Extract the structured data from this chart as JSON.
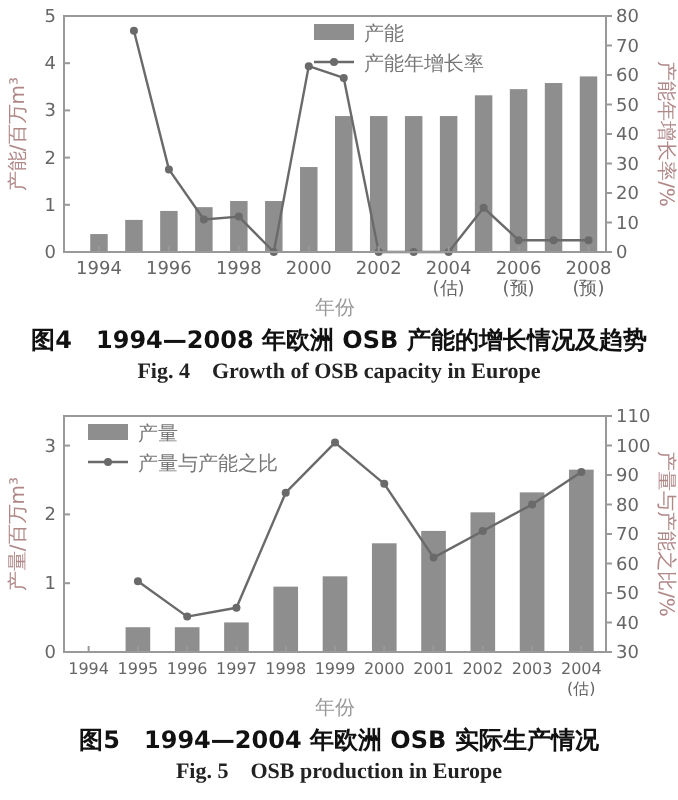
{
  "chart_data": [
    {
      "type": "bar",
      "title": "图4　1994—2008 年欧洲 OSB 产能的增长情况及趋势",
      "subtitle": "Fig. 4　Growth of OSB capacity in Europe",
      "xlabel": "年份",
      "ylabel": "产能/百万m³",
      "y2label": "产能年增长率/%",
      "x": [
        1994,
        1995,
        1996,
        1997,
        1998,
        1999,
        2000,
        2001,
        2002,
        2003,
        2004,
        2005,
        2006,
        2007,
        2008
      ],
      "xlim": [
        1993,
        2008.5
      ],
      "xticks": [
        1994,
        1996,
        1998,
        2000,
        2002,
        {
          "value": 2004,
          "label": "2004(估)"
        },
        {
          "value": 2006,
          "label": "2006(预)"
        },
        {
          "value": 2008,
          "label": "2008(预)"
        }
      ],
      "ylim": [
        0,
        5
      ],
      "yticks": [
        0,
        1,
        2,
        3,
        4,
        5
      ],
      "y2lim": [
        0,
        80
      ],
      "y2ticks": [
        0,
        10,
        20,
        30,
        40,
        50,
        60,
        70,
        80
      ],
      "series": [
        {
          "name": "产能",
          "color": "#8e8e8e",
          "values": [
            0.38,
            0.68,
            0.87,
            0.95,
            1.08,
            1.08,
            1.8,
            2.88,
            2.88,
            2.88,
            2.88,
            3.32,
            3.45,
            3.58,
            3.72
          ]
        },
        {
          "name": "产能年增长率",
          "type": "line",
          "axis": "y2",
          "color": "#6a6a6a",
          "values": [
            null,
            75,
            28,
            11,
            12,
            0,
            63,
            59,
            0,
            0,
            0,
            15,
            4,
            4,
            4
          ]
        }
      ],
      "legend": "top right",
      "marker": "circle",
      "line_style": "solid",
      "grid": false
    },
    {
      "type": "bar",
      "title": "图5　1994—2004 年欧洲 OSB 实际生产情况",
      "subtitle": "Fig. 5　OSB production in Europe",
      "xlabel": "年份",
      "ylabel": "产量/百万m³",
      "y2label": "产量与产能之比/%",
      "categories": [
        "1994",
        "1995",
        "1996",
        "1997",
        "1998",
        "1999",
        "2000",
        "2001",
        "2002",
        "2003",
        "2004(估)"
      ],
      "ylim": [
        0,
        3.43
      ],
      "yticks": [
        0,
        1,
        2,
        3
      ],
      "y2lim": [
        30,
        110
      ],
      "y2ticks": [
        30,
        40,
        50,
        60,
        70,
        80,
        90,
        100,
        110
      ],
      "series": [
        {
          "name": "产量",
          "color": "#8e8e8e",
          "values": [
            null,
            0.36,
            0.36,
            0.43,
            0.95,
            1.1,
            1.58,
            1.76,
            2.03,
            2.32,
            2.65
          ]
        },
        {
          "name": "产量与产能之比",
          "type": "line",
          "axis": "y2",
          "color": "#6a6a6a",
          "values": [
            null,
            54,
            42,
            45,
            84,
            101,
            87,
            62,
            71,
            80,
            91
          ]
        }
      ],
      "legend": "top left",
      "marker": "circle",
      "line_style": "solid",
      "grid": false
    }
  ]
}
